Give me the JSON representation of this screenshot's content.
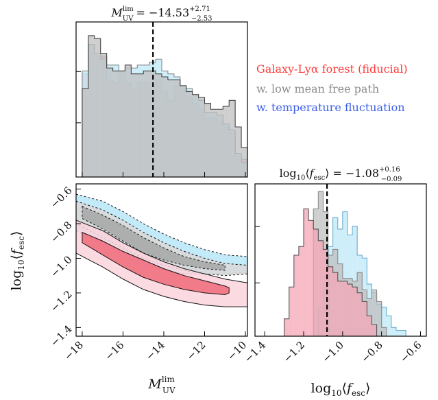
{
  "chart_data": [
    {
      "id": "muv_hist",
      "type": "histogram",
      "title": "M_UV^lim = −14.53 +2.71 −2.53",
      "title_parts": {
        "var": "M",
        "sub": "UV",
        "sup": "lim",
        "value": "= −14.53",
        "plus": "+2.71",
        "minus": "−2.53"
      },
      "xlim": [
        -18.3,
        -9.9
      ],
      "median": -14.53,
      "bin_edges": [
        -18.0,
        -17.7,
        -17.4,
        -17.1,
        -16.8,
        -16.5,
        -16.2,
        -15.9,
        -15.6,
        -15.3,
        -15.0,
        -14.7,
        -14.4,
        -14.1,
        -13.8,
        -13.5,
        -13.2,
        -12.9,
        -12.6,
        -12.3,
        -12.0,
        -11.7,
        -11.4,
        -11.1,
        -10.8,
        -10.5,
        -10.2,
        -9.9
      ],
      "series": [
        {
          "name": "Galaxy-Lyα forest (fiducial)",
          "color": "#f4a6b6",
          "values": [
            0.7,
            0.9,
            0.82,
            0.82,
            0.66,
            0.64,
            0.72,
            0.64,
            0.6,
            0.64,
            0.64,
            0.62,
            0.66,
            0.58,
            0.52,
            0.62,
            0.6,
            0.54,
            0.5,
            0.46,
            0.4,
            0.4,
            0.38,
            0.34,
            0.3,
            0.14,
            0.12
          ]
        },
        {
          "name": "w. temperature fluctuation",
          "color": "#bde8f7",
          "values": [
            0.72,
            0.9,
            0.84,
            0.8,
            0.76,
            0.76,
            0.72,
            0.74,
            0.74,
            0.76,
            0.76,
            0.78,
            0.8,
            0.72,
            0.7,
            0.68,
            0.62,
            0.6,
            0.56,
            0.52,
            0.44,
            0.44,
            0.42,
            0.36,
            0.32,
            0.16,
            0.1
          ]
        },
        {
          "name": "w. low mean free path",
          "color": "#bfbfbf",
          "values": [
            0.6,
            0.96,
            0.94,
            0.84,
            0.74,
            0.72,
            0.72,
            0.76,
            0.7,
            0.7,
            0.72,
            0.72,
            0.7,
            0.68,
            0.66,
            0.66,
            0.62,
            0.58,
            0.56,
            0.54,
            0.5,
            0.46,
            0.46,
            0.48,
            0.52,
            0.34,
            0.2
          ]
        }
      ]
    },
    {
      "id": "joint_contour",
      "type": "contour",
      "xlabel": "M_UV^lim",
      "ylabel": "log10⟨f_esc⟩",
      "xlim": [
        -18.3,
        -9.9
      ],
      "ylim": [
        -1.45,
        -0.57
      ],
      "xticks": [
        -18,
        -16,
        -14,
        -12,
        -10
      ],
      "xtick_labels": [
        "−18",
        "−16",
        "−14",
        "−12",
        "−10"
      ],
      "yticks": [
        -1.4,
        -1.2,
        -1.0,
        -0.8,
        -0.6
      ],
      "ytick_labels": [
        "−1.4",
        "−1.2",
        "−1.0",
        "−0.8",
        "−0.6"
      ],
      "series": [
        {
          "name": "w. temperature fluctuation",
          "color": "#bde8f7",
          "outer_95": {
            "upper": [
              [
                -18.3,
                -0.63
              ],
              [
                -17.0,
                -0.67
              ],
              [
                -16.0,
                -0.73
              ],
              [
                -15.0,
                -0.8
              ],
              [
                -14.0,
                -0.86
              ],
              [
                -13.0,
                -0.91
              ],
              [
                -12.0,
                -0.95
              ],
              [
                -11.0,
                -0.98
              ],
              [
                -9.9,
                -0.99
              ]
            ],
            "lower": [
              [
                -18.3,
                -0.84
              ],
              [
                -17.0,
                -0.92
              ],
              [
                -16.0,
                -0.99
              ],
              [
                -15.0,
                -1.04
              ],
              [
                -14.0,
                -1.07
              ],
              [
                -13.0,
                -1.09
              ],
              [
                -12.0,
                -1.09
              ],
              [
                -11.0,
                -1.09
              ],
              [
                -9.9,
                -1.08
              ]
            ]
          }
        },
        {
          "name": "w. low mean free path",
          "color": "#bdbdbd",
          "outer_95": {
            "upper": [
              [
                -18.3,
                -0.67
              ],
              [
                -17.0,
                -0.72
              ],
              [
                -16.0,
                -0.78
              ],
              [
                -15.0,
                -0.85
              ],
              [
                -14.0,
                -0.91
              ],
              [
                -13.0,
                -0.96
              ],
              [
                -12.0,
                -1.0
              ],
              [
                -11.0,
                -1.03
              ],
              [
                -9.9,
                -1.04
              ]
            ],
            "lower": [
              [
                -18.3,
                -0.8
              ],
              [
                -17.0,
                -0.88
              ],
              [
                -16.0,
                -0.94
              ],
              [
                -15.0,
                -1.0
              ],
              [
                -14.0,
                -1.04
              ],
              [
                -13.0,
                -1.07
              ],
              [
                -12.0,
                -1.09
              ],
              [
                -11.0,
                -1.1
              ],
              [
                -9.9,
                -1.09
              ]
            ]
          },
          "inner_68": {
            "upper": [
              [
                -18.0,
                -0.7
              ],
              [
                -17.0,
                -0.75
              ],
              [
                -16.0,
                -0.81
              ],
              [
                -15.0,
                -0.88
              ],
              [
                -14.0,
                -0.94
              ],
              [
                -13.0,
                -0.99
              ],
              [
                -12.0,
                -1.02
              ],
              [
                -11.0,
                -1.04
              ]
            ],
            "lower": [
              [
                -18.0,
                -0.77
              ],
              [
                -17.0,
                -0.83
              ],
              [
                -16.0,
                -0.9
              ],
              [
                -15.0,
                -0.97
              ],
              [
                -14.0,
                -1.01
              ],
              [
                -13.0,
                -1.04
              ],
              [
                -12.0,
                -1.06
              ],
              [
                -11.0,
                -1.07
              ]
            ]
          }
        },
        {
          "name": "Galaxy-Lyα forest (fiducial)",
          "color": "#f4a6b6",
          "outer_95": {
            "upper": [
              [
                -18.3,
                -0.78
              ],
              [
                -17.0,
                -0.84
              ],
              [
                -16.0,
                -0.91
              ],
              [
                -15.0,
                -0.97
              ],
              [
                -14.0,
                -1.02
              ],
              [
                -13.0,
                -1.06
              ],
              [
                -12.0,
                -1.09
              ],
              [
                -11.0,
                -1.12
              ],
              [
                -10.0,
                -1.14
              ],
              [
                -9.9,
                -1.14
              ]
            ],
            "lower": [
              [
                -18.3,
                -0.97
              ],
              [
                -17.0,
                -1.05
              ],
              [
                -16.0,
                -1.12
              ],
              [
                -15.0,
                -1.18
              ],
              [
                -14.0,
                -1.22
              ],
              [
                -13.0,
                -1.25
              ],
              [
                -12.0,
                -1.27
              ],
              [
                -11.0,
                -1.28
              ],
              [
                -10.0,
                -1.28
              ],
              [
                -9.9,
                -1.28
              ]
            ]
          },
          "inner_68": {
            "upper": [
              [
                -18.0,
                -0.85
              ],
              [
                -17.0,
                -0.9
              ],
              [
                -16.0,
                -0.96
              ],
              [
                -15.0,
                -1.01
              ],
              [
                -14.0,
                -1.06
              ],
              [
                -13.0,
                -1.1
              ],
              [
                -12.0,
                -1.13
              ],
              [
                -11.0,
                -1.16
              ],
              [
                -10.8,
                -1.17
              ]
            ],
            "lower": [
              [
                -18.0,
                -0.91
              ],
              [
                -17.0,
                -0.98
              ],
              [
                -16.0,
                -1.05
              ],
              [
                -15.0,
                -1.11
              ],
              [
                -14.0,
                -1.15
              ],
              [
                -13.0,
                -1.18
              ],
              [
                -12.0,
                -1.2
              ],
              [
                -11.0,
                -1.21
              ],
              [
                -10.8,
                -1.2
              ]
            ]
          }
        }
      ]
    },
    {
      "id": "fesc_hist",
      "type": "histogram",
      "title": "log10⟨f_esc⟩ = −1.08 +0.16 −0.09",
      "title_parts": {
        "value": "= −1.08",
        "plus": "+0.16",
        "minus": "−0.09"
      },
      "xlabel": "log10⟨f_esc⟩",
      "xlim": [
        -1.45,
        -0.57
      ],
      "xticks": [
        -1.4,
        -1.2,
        -1.0,
        -0.8,
        -0.6
      ],
      "xtick_labels": [
        "−1.4",
        "−1.2",
        "−1.0",
        "−0.8",
        "−0.6"
      ],
      "median": -1.08,
      "bin_edges": [
        -1.3,
        -1.275,
        -1.25,
        -1.225,
        -1.2,
        -1.175,
        -1.15,
        -1.125,
        -1.1,
        -1.075,
        -1.05,
        -1.025,
        -1.0,
        -0.975,
        -0.95,
        -0.925,
        -0.9,
        -0.875,
        -0.85,
        -0.825,
        -0.8,
        -0.775,
        -0.75,
        -0.725,
        -0.7,
        -0.675
      ],
      "series": [
        {
          "name": "w. temperature fluctuation",
          "color": "#bde8f7",
          "values": [
            0.0,
            0.0,
            0.0,
            0.0,
            0.0,
            0.0,
            0.0,
            0.2,
            0.34,
            0.62,
            0.82,
            0.74,
            0.86,
            0.7,
            0.76,
            0.56,
            0.54,
            0.36,
            0.3,
            0.22,
            0.2,
            0.14,
            0.06,
            0.04,
            0.04
          ]
        },
        {
          "name": "w. low mean free path",
          "color": "#bfbfbf",
          "values": [
            0.0,
            0.0,
            0.0,
            0.0,
            0.0,
            0.0,
            0.88,
            1.0,
            0.86,
            0.56,
            0.6,
            0.5,
            0.4,
            0.4,
            0.38,
            0.44,
            0.32,
            0.26,
            0.32,
            0.24,
            0.06,
            0.0,
            0.0,
            0.0,
            0.0
          ]
        },
        {
          "name": "Galaxy-Lyα forest (fiducial)",
          "color": "#f4a6b6",
          "values": [
            0.12,
            0.34,
            0.56,
            0.62,
            0.88,
            0.8,
            0.74,
            0.66,
            0.6,
            0.48,
            0.44,
            0.38,
            0.38,
            0.36,
            0.34,
            0.3,
            0.24,
            0.14,
            0.08,
            0.0,
            0.0,
            0.0,
            0.0,
            0.0,
            0.0
          ]
        }
      ]
    }
  ],
  "legend": [
    {
      "label": "Galaxy-Lyα forest (fiducial)",
      "color": "#ff3b3b"
    },
    {
      "label": "w. low mean free path",
      "color": "#8c8c8c"
    },
    {
      "label": "w. temperature fluctuation",
      "color": "#3b5ee8"
    }
  ]
}
